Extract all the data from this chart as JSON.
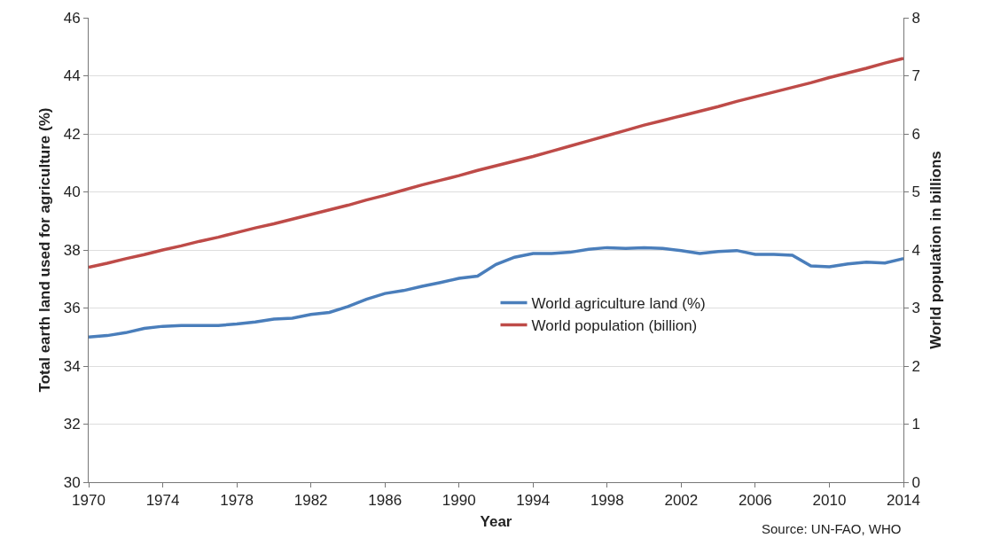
{
  "chart_data": {
    "type": "line",
    "xlabel": "Year",
    "ylabel": "Total earth land used for agriculture (%)",
    "y2label": "World population in billions",
    "x": [
      1970,
      1971,
      1972,
      1973,
      1974,
      1975,
      1976,
      1977,
      1978,
      1979,
      1980,
      1981,
      1982,
      1983,
      1984,
      1985,
      1986,
      1987,
      1988,
      1989,
      1990,
      1991,
      1992,
      1993,
      1994,
      1995,
      1996,
      1997,
      1998,
      1999,
      2000,
      2001,
      2002,
      2003,
      2004,
      2005,
      2006,
      2007,
      2008,
      2009,
      2010,
      2011,
      2012,
      2013,
      2014
    ],
    "series": [
      {
        "name": "World agriculture land (%)",
        "color": "#4a7ebb",
        "values": [
          35.0,
          35.05,
          35.15,
          35.3,
          35.37,
          35.4,
          35.4,
          35.4,
          35.45,
          35.52,
          35.62,
          35.65,
          35.78,
          35.85,
          36.05,
          36.3,
          36.5,
          36.6,
          36.75,
          36.88,
          37.02,
          37.1,
          37.5,
          37.75,
          37.88,
          37.88,
          37.92,
          38.02,
          38.08,
          38.05,
          38.08,
          38.05,
          37.98,
          37.88,
          37.95,
          37.98,
          37.85,
          37.85,
          37.82,
          37.45,
          37.42,
          37.52,
          37.58,
          37.55,
          37.7
        ]
      },
      {
        "name": "World population (billion)",
        "color": "#be4b48",
        "axis": "y2",
        "values": [
          3.7,
          3.77,
          3.85,
          3.92,
          4.0,
          4.07,
          4.15,
          4.22,
          4.3,
          4.38,
          4.45,
          4.53,
          4.61,
          4.69,
          4.77,
          4.86,
          4.94,
          5.03,
          5.12,
          5.2,
          5.28,
          5.37,
          5.45,
          5.53,
          5.61,
          5.7,
          5.79,
          5.88,
          5.97,
          6.06,
          6.15,
          6.23,
          6.31,
          6.39,
          6.47,
          6.56,
          6.64,
          6.72,
          6.8,
          6.88,
          6.97,
          7.05,
          7.13,
          7.22,
          7.3
        ]
      }
    ],
    "xlim": [
      1970,
      2014
    ],
    "xticks": [
      1970,
      1974,
      1978,
      1982,
      1986,
      1990,
      1994,
      1998,
      2002,
      2006,
      2010,
      2014
    ],
    "ylim": [
      30,
      46
    ],
    "yticks": [
      30,
      32,
      34,
      36,
      38,
      40,
      42,
      44,
      46
    ],
    "y2lim": [
      0,
      8
    ],
    "y2ticks": [
      0,
      1,
      2,
      3,
      4,
      5,
      6,
      7,
      8
    ],
    "grid": "y",
    "legend": "right",
    "marker": "none",
    "line_style": "solid",
    "annotations": [
      "Source: UN-FAO, WHO"
    ]
  }
}
